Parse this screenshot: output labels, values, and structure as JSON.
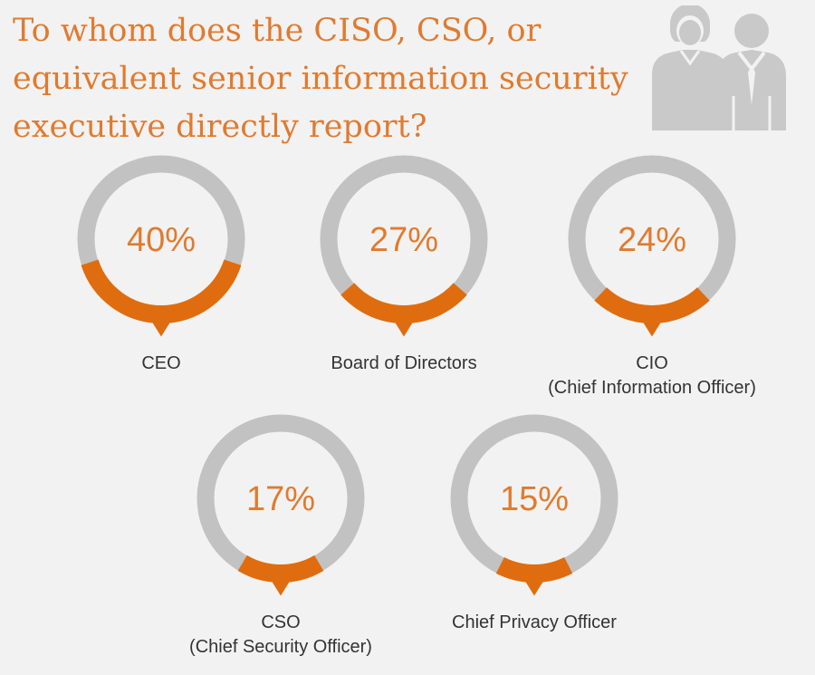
{
  "title_lines": [
    "To whom does the CISO, CSO, or",
    "equivalent senior information security",
    "executive directly report?"
  ],
  "colors": {
    "accent": "#e07b2f",
    "fill": "#df6d0f",
    "track": "#c2c2c2",
    "icon": "#c9c9c9",
    "background": "#f2f2f2",
    "label": "#333333"
  },
  "icons": [
    "people-icon"
  ],
  "chart_data": {
    "type": "gauge",
    "unit": "%",
    "categories": [
      "CEO",
      "Board of Directors",
      "CIO",
      "CSO",
      "Chief Privacy Officer"
    ],
    "values": [
      40,
      27,
      24,
      17,
      15
    ],
    "value_labels": [
      "40%",
      "27%",
      "24%",
      "17%",
      "15%"
    ],
    "label_lines": [
      [
        "CEO"
      ],
      [
        "Board of Directors"
      ],
      [
        "CIO",
        "(Chief Information Officer)"
      ],
      [
        "CSO",
        "(Chief Security Officer)"
      ],
      [
        "Chief Privacy Officer"
      ]
    ]
  }
}
